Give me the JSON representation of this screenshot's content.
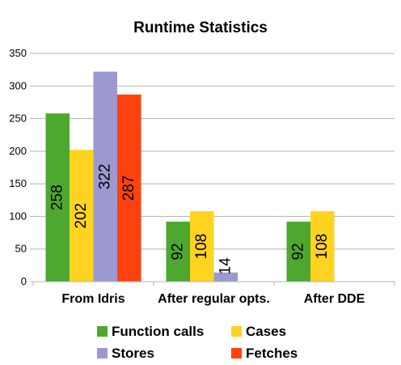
{
  "chart_data": {
    "type": "bar",
    "title": "Runtime Statistics",
    "xlabel": "",
    "ylabel": "",
    "ylim": [
      0,
      350
    ],
    "yticks": [
      0,
      50,
      100,
      150,
      200,
      250,
      300,
      350
    ],
    "grid": "horizontal",
    "legend_position": "bottom",
    "categories": [
      "From Idris",
      "After regular opts.",
      "After DDE"
    ],
    "series": [
      {
        "name": "Function calls",
        "color": "#4ea72e",
        "values": [
          258,
          92,
          92
        ]
      },
      {
        "name": "Cases",
        "color": "#ffd320",
        "values": [
          202,
          108,
          108
        ]
      },
      {
        "name": "Stores",
        "color": "#9c99cf",
        "values": [
          322,
          14,
          0
        ]
      },
      {
        "name": "Fetches",
        "color": "#ff420e",
        "values": [
          287,
          0,
          0
        ]
      }
    ]
  }
}
